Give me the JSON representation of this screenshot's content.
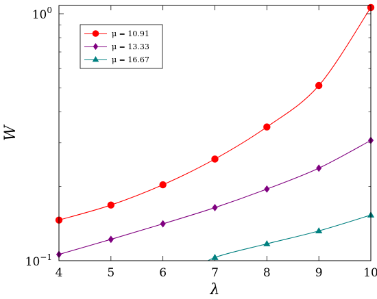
{
  "chart_data": {
    "type": "line",
    "title": "",
    "xlabel": "λ",
    "ylabel": "W",
    "xlim": [
      4,
      10
    ],
    "ylim": [
      0.1,
      1.08
    ],
    "yscale": "log",
    "grid": false,
    "legend_position": "top-left",
    "x_ticks": [
      4,
      5,
      6,
      7,
      8,
      9,
      10
    ],
    "y_ticks": [
      {
        "value": 0.1,
        "label_base": "10",
        "label_exp": "−1"
      },
      {
        "value": 1.0,
        "label_base": "10",
        "label_exp": "0"
      }
    ],
    "series": [
      {
        "name": "μ = 10.91",
        "color": "#ff0000",
        "marker": "circle",
        "x": [
          4,
          5,
          6,
          7,
          8,
          9,
          10
        ],
        "y": [
          0.146,
          0.168,
          0.203,
          0.258,
          0.348,
          0.512,
          1.06
        ]
      },
      {
        "name": "μ = 13.33",
        "color": "#800080",
        "marker": "diamond",
        "x": [
          4,
          5,
          6,
          7,
          8,
          9,
          10
        ],
        "y": [
          0.106,
          0.122,
          0.141,
          0.164,
          0.195,
          0.237,
          0.307
        ]
      },
      {
        "name": "μ = 16.67",
        "color": "#008080",
        "marker": "triangle",
        "x": [
          7,
          8,
          9,
          10
        ],
        "y": [
          0.103,
          0.117,
          0.132,
          0.153
        ]
      }
    ]
  }
}
